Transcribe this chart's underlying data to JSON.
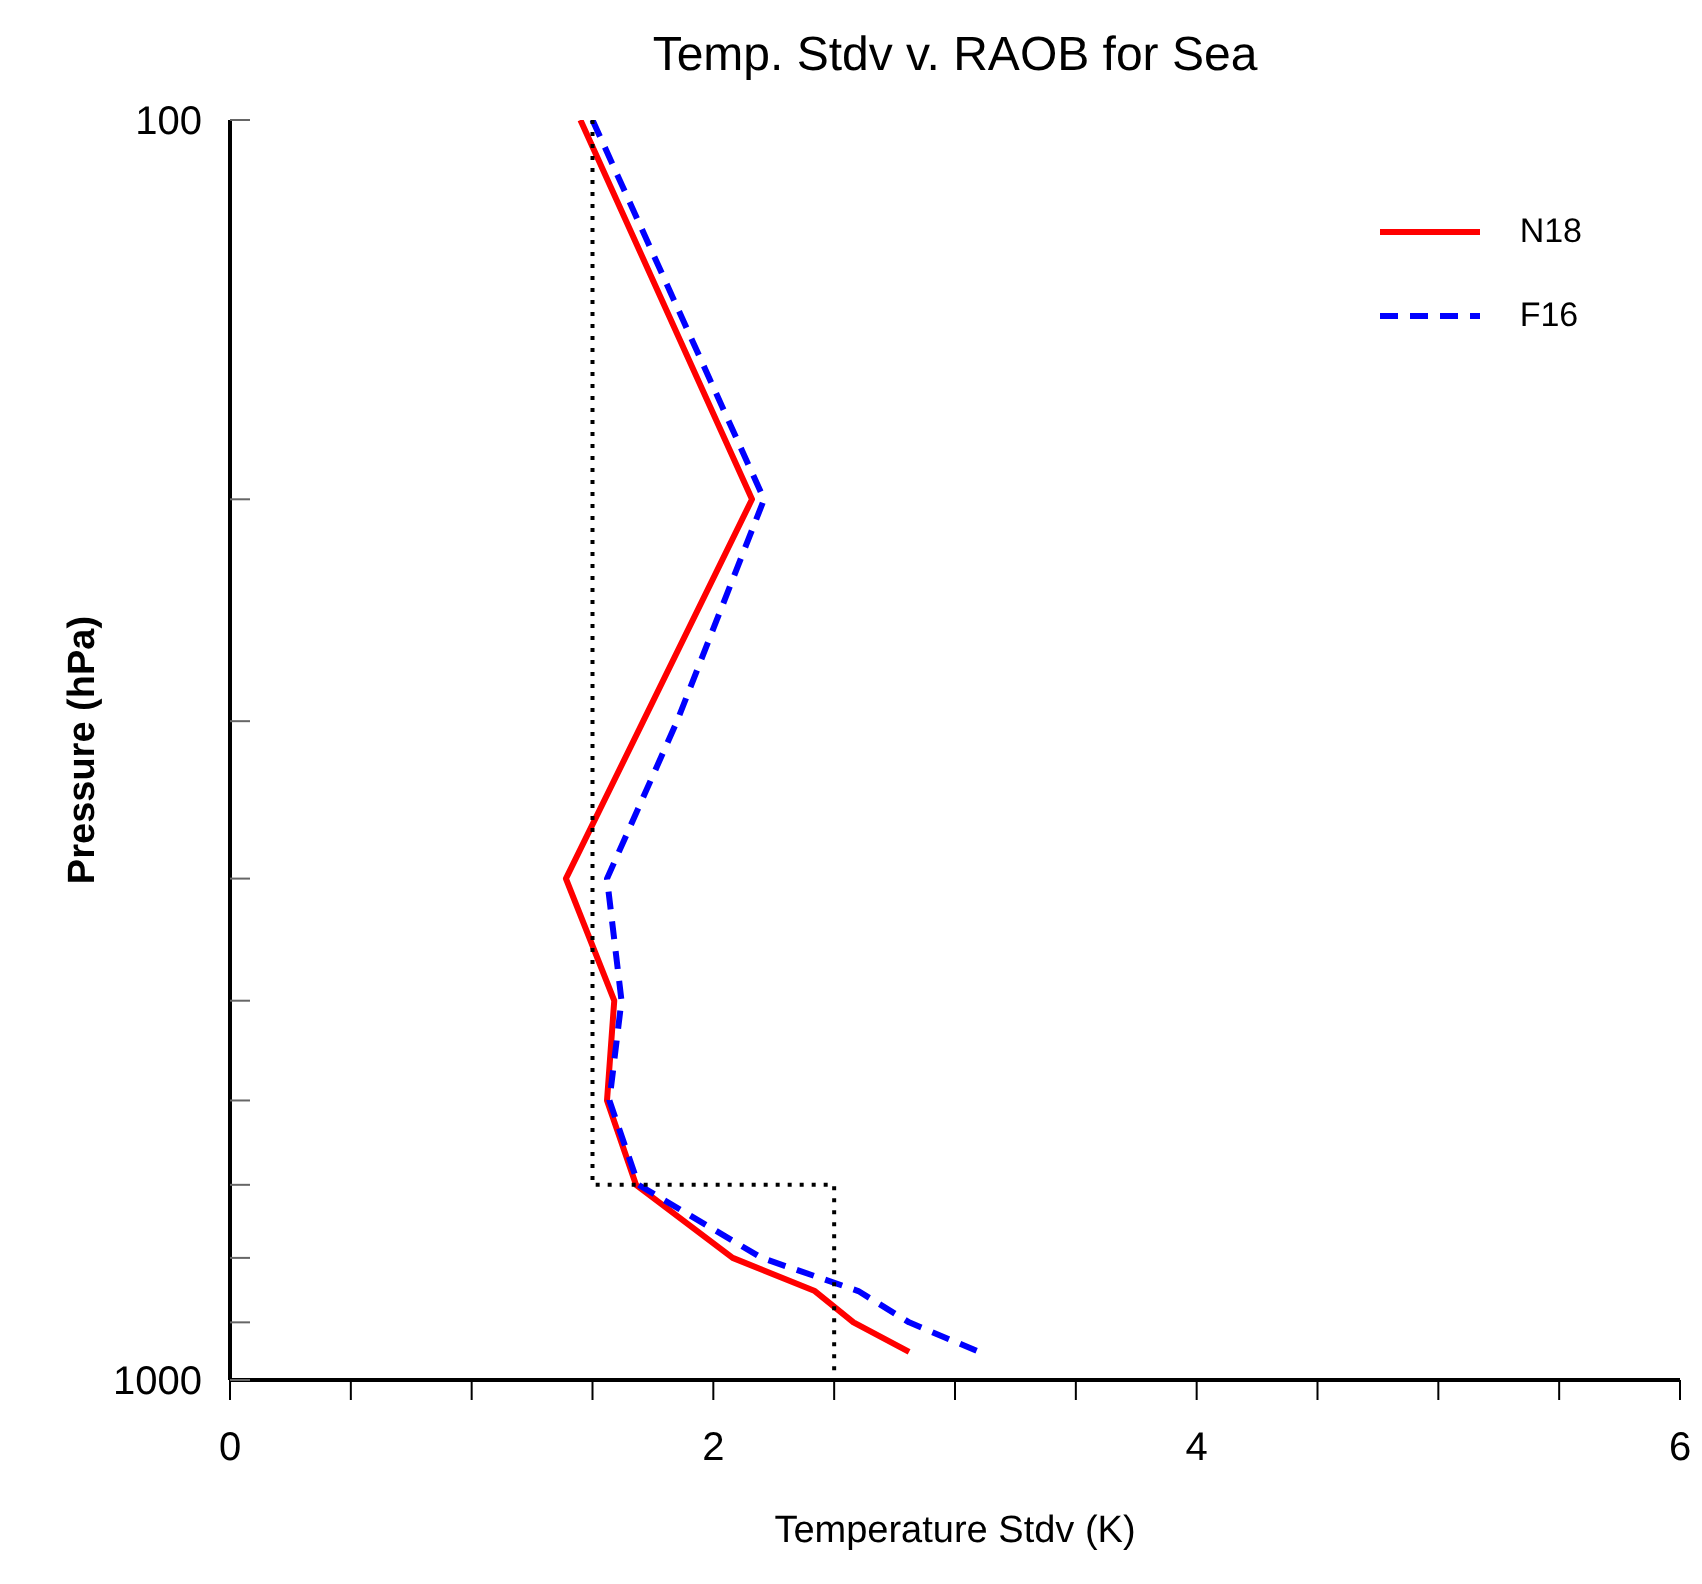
{
  "chart_data": {
    "type": "line",
    "title": "Temp. Stdv v. RAOB for Sea",
    "xlabel": "Temperature Stdv (K)",
    "ylabel": "Pressure (hPa)",
    "log": "y",
    "xlim": [
      0,
      6
    ],
    "ylim": [
      1000,
      100
    ],
    "xticks": [
      0,
      {
        "value": 0.5,
        "label": null
      },
      {
        "value": 1,
        "label": null
      },
      {
        "value": 1.5,
        "label": null
      },
      2,
      {
        "value": 2.5,
        "label": null
      },
      {
        "value": 3,
        "label": null
      },
      {
        "value": 3.5,
        "label": null
      },
      4,
      {
        "value": 4.5,
        "label": null
      },
      {
        "value": 5,
        "label": null
      },
      {
        "value": 5.5,
        "label": null
      },
      6
    ],
    "yticks": [
      100,
      {
        "value": 200,
        "label": null
      },
      {
        "value": 300,
        "label": null
      },
      {
        "value": 400,
        "label": null
      },
      {
        "value": 500,
        "label": null
      },
      {
        "value": 600,
        "label": null
      },
      {
        "value": 700,
        "label": null
      },
      {
        "value": 800,
        "label": null
      },
      {
        "value": 900,
        "label": null
      },
      1000
    ],
    "legend": "top right",
    "marker": "none",
    "series": [
      {
        "name": "N18",
        "color": "#ff0000",
        "line_style": "solid",
        "x": [
          1.45,
          2.16,
          1.71,
          1.39,
          1.59,
          1.56,
          1.68,
          2.08,
          2.42,
          2.58,
          2.81
        ],
        "values": [
          100,
          200,
          300,
          400,
          500,
          600,
          700,
          800,
          850,
          900,
          950
        ]
      },
      {
        "name": "F16",
        "color": "#0000ff",
        "line_style": "dashed",
        "x": [
          1.5,
          2.21,
          1.85,
          1.56,
          1.62,
          1.57,
          1.69,
          2.2,
          2.6,
          2.81,
          3.1
        ],
        "values": [
          100,
          200,
          300,
          400,
          500,
          600,
          700,
          800,
          850,
          900,
          950
        ]
      },
      {
        "color": "#000000",
        "line_style": "dotted",
        "x": [
          1.5,
          1.5,
          2.5,
          2.5
        ],
        "values": [
          100,
          700,
          700,
          1000
        ]
      }
    ]
  }
}
